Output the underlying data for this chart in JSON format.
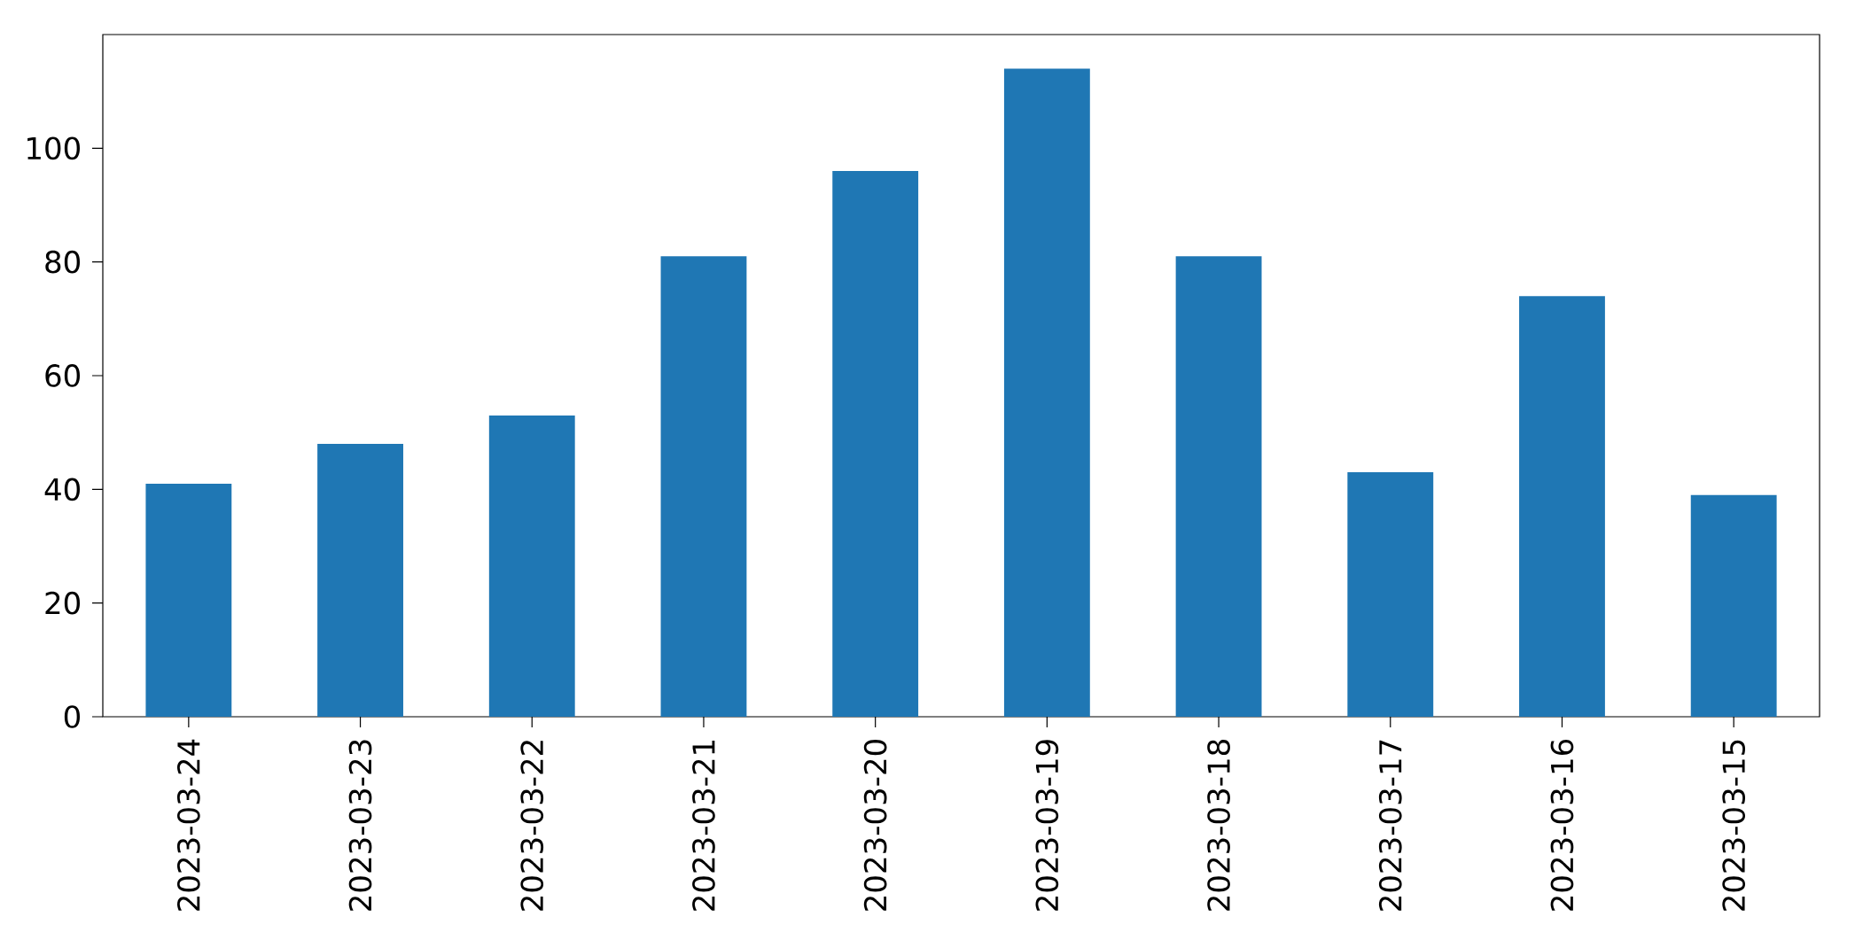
{
  "chart_data": {
    "type": "bar",
    "categories": [
      "2023-03-24",
      "2023-03-23",
      "2023-03-22",
      "2023-03-21",
      "2023-03-20",
      "2023-03-19",
      "2023-03-18",
      "2023-03-17",
      "2023-03-16",
      "2023-03-15"
    ],
    "values": [
      41,
      48,
      53,
      81,
      96,
      114,
      81,
      43,
      74,
      39
    ],
    "color": "#1f77b4",
    "ylim": [
      0,
      120
    ],
    "yticks": [
      0,
      20,
      40,
      60,
      80,
      100
    ]
  }
}
